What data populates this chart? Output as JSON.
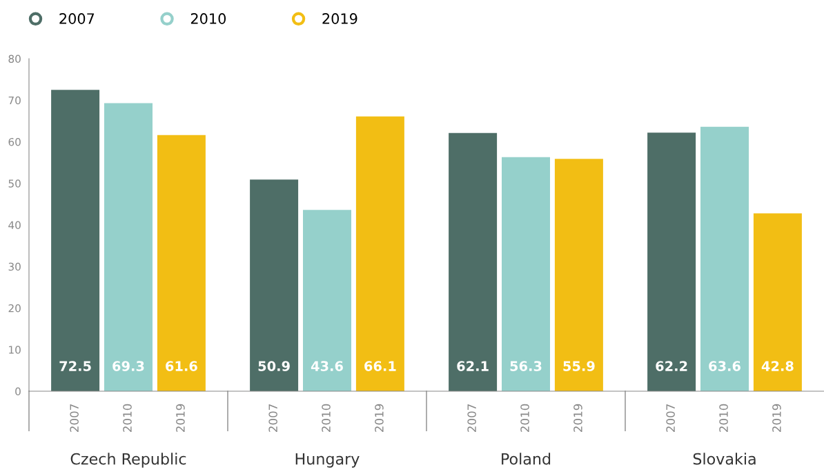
{
  "chart_data": {
    "type": "bar",
    "categories": [
      "Czech Republic",
      "Hungary",
      "Poland",
      "Slovakia"
    ],
    "series": [
      {
        "name": "2007",
        "color": "#4e6e67",
        "values": [
          72.5,
          50.9,
          62.1,
          62.2
        ]
      },
      {
        "name": "2010",
        "color": "#95d0cb",
        "values": [
          69.3,
          43.6,
          56.3,
          63.6
        ]
      },
      {
        "name": "2019",
        "color": "#f2be14",
        "values": [
          61.6,
          66.1,
          55.9,
          42.8
        ]
      }
    ],
    "ylim": [
      0,
      80
    ],
    "yticks": [
      0,
      10,
      20,
      30,
      40,
      50,
      60,
      70,
      80
    ],
    "grid": false,
    "legend": "top left",
    "data_labels": true
  }
}
